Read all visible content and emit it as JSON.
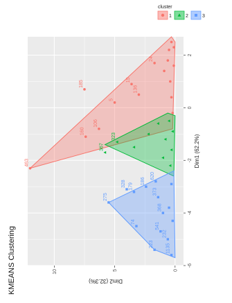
{
  "chart_data": {
    "type": "scatter",
    "title": "KMEANS Clustering",
    "xlabel": "Dim1 (62.2%)",
    "ylabel": "Dim2 (32.3%)",
    "xlim": [
      -6,
      2.7
    ],
    "ylim": [
      -0.7,
      12.2
    ],
    "x_ticks": [
      -6,
      -4,
      -2,
      0,
      2
    ],
    "y_ticks": [
      0,
      5,
      10
    ],
    "x_tick_labels": [
      "-6",
      "-4",
      "-2",
      "0",
      "2"
    ],
    "y_tick_labels": [
      "0",
      "5",
      "10"
    ],
    "grid": true,
    "rotation": "rotated 90 degrees counter-clockwise",
    "legend": {
      "title": "cluster",
      "position": "top-right",
      "entries": [
        {
          "label": "1",
          "color": "#F8766D",
          "shape": "circle"
        },
        {
          "label": "2",
          "color": "#00BA38",
          "shape": "triangle"
        },
        {
          "label": "3",
          "color": "#619CFF",
          "shape": "square"
        }
      ]
    },
    "clusters": [
      {
        "name": "1",
        "color": "#F8766D",
        "hull": [
          [
            -2.3,
            12.0
          ],
          [
            2.7,
            0.3
          ],
          [
            2.5,
            0.0
          ],
          [
            -0.8,
            0.2
          ],
          [
            -2.3,
            12.0
          ]
        ],
        "points": [
          {
            "x": -2.3,
            "y": 12.0,
            "label": "463"
          },
          {
            "x": 0.7,
            "y": 7.5,
            "label": "185"
          },
          {
            "x": -1.1,
            "y": 7.4,
            "label": "160"
          },
          {
            "x": -0.8,
            "y": 6.3,
            "label": "106"
          },
          {
            "x": 0.2,
            "y": 5.0,
            "label": "5"
          },
          {
            "x": 0.9,
            "y": 3.6,
            "label": "15"
          },
          {
            "x": 0.5,
            "y": 3.0,
            "label": "136"
          },
          {
            "x": 1.7,
            "y": 1.7,
            "label": "24"
          },
          {
            "x": 1.4,
            "y": 0.9,
            "label": ""
          },
          {
            "x": 1.8,
            "y": 0.6,
            "label": ""
          },
          {
            "x": 2.2,
            "y": 0.5,
            "label": ""
          },
          {
            "x": 2.5,
            "y": 0.3,
            "label": ""
          },
          {
            "x": 1.0,
            "y": 0.4,
            "label": ""
          },
          {
            "x": 0.4,
            "y": 0.3,
            "label": ""
          },
          {
            "x": -0.2,
            "y": 0.2,
            "label": ""
          },
          {
            "x": 1.6,
            "y": 0.1,
            "label": ""
          },
          {
            "x": 2.3,
            "y": 0.1,
            "label": ""
          }
        ]
      },
      {
        "name": "2",
        "color": "#00BA38",
        "hull": [
          [
            -1.4,
            5.8
          ],
          [
            -0.2,
            0.6
          ],
          [
            -0.3,
            0.0
          ],
          [
            -2.6,
            0.1
          ],
          [
            -1.4,
            5.8
          ]
        ],
        "points": [
          {
            "x": -1.7,
            "y": 5.8,
            "label": "367"
          },
          {
            "x": -1.3,
            "y": 4.8,
            "label": "323"
          },
          {
            "x": -1.5,
            "y": 3.4,
            "label": ""
          },
          {
            "x": -1.0,
            "y": 2.2,
            "label": ""
          },
          {
            "x": -0.6,
            "y": 1.4,
            "label": ""
          },
          {
            "x": -1.9,
            "y": 1.0,
            "label": ""
          },
          {
            "x": -1.2,
            "y": 0.8,
            "label": ""
          },
          {
            "x": -0.5,
            "y": 0.5,
            "label": ""
          },
          {
            "x": -2.2,
            "y": 0.4,
            "label": ""
          },
          {
            "x": -1.6,
            "y": 0.3,
            "label": ""
          },
          {
            "x": -0.9,
            "y": 0.2,
            "label": ""
          }
        ]
      },
      {
        "name": "3",
        "color": "#619CFF",
        "hull": [
          [
            -3.6,
            5.5
          ],
          [
            -5.4,
            1.7
          ],
          [
            -5.7,
            0.0
          ],
          [
            -2.4,
            0.1
          ],
          [
            -3.6,
            5.5
          ]
        ],
        "points": [
          {
            "x": -3.6,
            "y": 5.5,
            "label": "275"
          },
          {
            "x": -3.1,
            "y": 4.0,
            "label": "328"
          },
          {
            "x": -3.2,
            "y": 3.4,
            "label": "179"
          },
          {
            "x": -3.0,
            "y": 2.4,
            "label": "186"
          },
          {
            "x": -2.8,
            "y": 1.6,
            "label": "620"
          },
          {
            "x": -3.4,
            "y": 1.4,
            "label": "373"
          },
          {
            "x": -4.0,
            "y": 1.0,
            "label": "368"
          },
          {
            "x": -4.5,
            "y": 3.2,
            "label": "74"
          },
          {
            "x": -5.4,
            "y": 1.7,
            "label": "223"
          },
          {
            "x": -4.7,
            "y": 1.2,
            "label": "541"
          },
          {
            "x": -5.0,
            "y": 0.6,
            "label": "232"
          },
          {
            "x": -5.6,
            "y": 0.3,
            "label": "1135"
          },
          {
            "x": -3.8,
            "y": 0.5,
            "label": ""
          },
          {
            "x": -2.9,
            "y": 0.3,
            "label": ""
          },
          {
            "x": -4.3,
            "y": 0.2,
            "label": ""
          }
        ]
      }
    ]
  }
}
